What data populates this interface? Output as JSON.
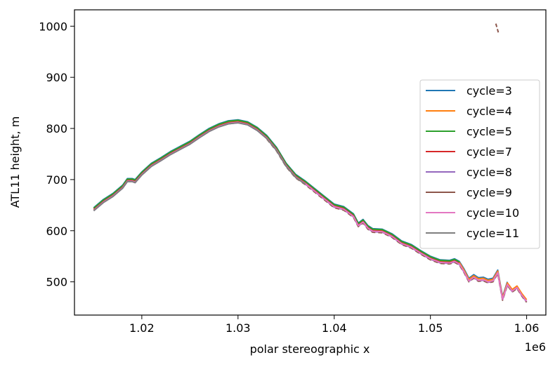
{
  "chart_data": {
    "type": "line",
    "title": "",
    "xlabel": "polar stereographic x",
    "ylabel": "ATL11 height, m",
    "x_offset_label": "1e6",
    "xlim": [
      1013000,
      1062000
    ],
    "ylim": [
      435,
      1032
    ],
    "x_ticks": [
      1020000,
      1030000,
      1040000,
      1050000,
      1060000
    ],
    "x_tick_labels": [
      "1.02",
      "1.03",
      "1.04",
      "1.05",
      "1.06"
    ],
    "y_ticks": [
      500,
      600,
      700,
      800,
      900,
      1000
    ],
    "y_tick_labels": [
      "500",
      "600",
      "700",
      "800",
      "900",
      "1000"
    ],
    "grid": false,
    "legend_position": "right",
    "base_profile": [
      [
        1015000,
        640
      ],
      [
        1016000,
        656
      ],
      [
        1017000,
        668
      ],
      [
        1018000,
        684
      ],
      [
        1018500,
        697
      ],
      [
        1019000,
        697
      ],
      [
        1019300,
        695
      ],
      [
        1020000,
        710
      ],
      [
        1021000,
        727
      ],
      [
        1022000,
        738
      ],
      [
        1023000,
        750
      ],
      [
        1024000,
        760
      ],
      [
        1025000,
        770
      ],
      [
        1026000,
        783
      ],
      [
        1027000,
        795
      ],
      [
        1028000,
        804
      ],
      [
        1029000,
        810
      ],
      [
        1030000,
        812
      ],
      [
        1031000,
        808
      ],
      [
        1032000,
        797
      ],
      [
        1033000,
        781
      ],
      [
        1034000,
        758
      ],
      [
        1035000,
        727
      ],
      [
        1036000,
        705
      ],
      [
        1037000,
        692
      ],
      [
        1038000,
        677
      ],
      [
        1039000,
        662
      ],
      [
        1040000,
        647
      ],
      [
        1041000,
        642
      ],
      [
        1042000,
        628
      ],
      [
        1042500,
        610
      ],
      [
        1043000,
        617
      ],
      [
        1043500,
        605
      ],
      [
        1044000,
        599
      ],
      [
        1045000,
        598
      ],
      [
        1046000,
        589
      ],
      [
        1047000,
        575
      ],
      [
        1048000,
        568
      ],
      [
        1049000,
        556
      ],
      [
        1050000,
        545
      ],
      [
        1051000,
        538
      ],
      [
        1052000,
        537
      ],
      [
        1052500,
        540
      ],
      [
        1053000,
        535
      ],
      [
        1053500,
        520
      ],
      [
        1054000,
        502
      ],
      [
        1054500,
        509
      ],
      [
        1055000,
        503
      ],
      [
        1055500,
        504
      ],
      [
        1056000,
        500
      ],
      [
        1056500,
        502
      ],
      [
        1057000,
        518
      ],
      [
        1057500,
        466
      ],
      [
        1058000,
        495
      ],
      [
        1058500,
        482
      ],
      [
        1059000,
        489
      ],
      [
        1059500,
        474
      ],
      [
        1060000,
        462
      ]
    ],
    "series": [
      {
        "name": "cycle=3",
        "color": "#1f77b4",
        "x_range": [
          1015000,
          1058300
        ],
        "offset": 5,
        "dash": false
      },
      {
        "name": "cycle=4",
        "color": "#ff7f0e",
        "x_range": [
          1015000,
          1060000
        ],
        "offset": 3,
        "dash": false
      },
      {
        "name": "cycle=5",
        "color": "#2ca02c",
        "x_range": [
          1015000,
          1053000
        ],
        "offset": 4,
        "dash": false
      },
      {
        "name": "cycle=7",
        "color": "#d62728",
        "x_range": [
          1015000,
          1053000
        ],
        "offset": 1,
        "dash": false
      },
      {
        "name": "cycle=8",
        "color": "#9467bd",
        "x_range": [
          1015000,
          1060000
        ],
        "offset": -1,
        "dash": false
      },
      {
        "name": "cycle=9",
        "color": "#8c564b",
        "x_range": [
          1033000,
          1060000
        ],
        "offset": -2,
        "dash": true,
        "extra_segment": [
          [
            1056800,
            1005
          ],
          [
            1057100,
            985
          ]
        ]
      },
      {
        "name": "cycle=10",
        "color": "#e377c2",
        "x_range": [
          1015000,
          1060000
        ],
        "offset": 0,
        "dash": false
      },
      {
        "name": "cycle=11",
        "color": "#7f7f7f",
        "x_range": [
          1015000,
          1037000
        ],
        "offset": -1,
        "dash": false
      }
    ]
  }
}
